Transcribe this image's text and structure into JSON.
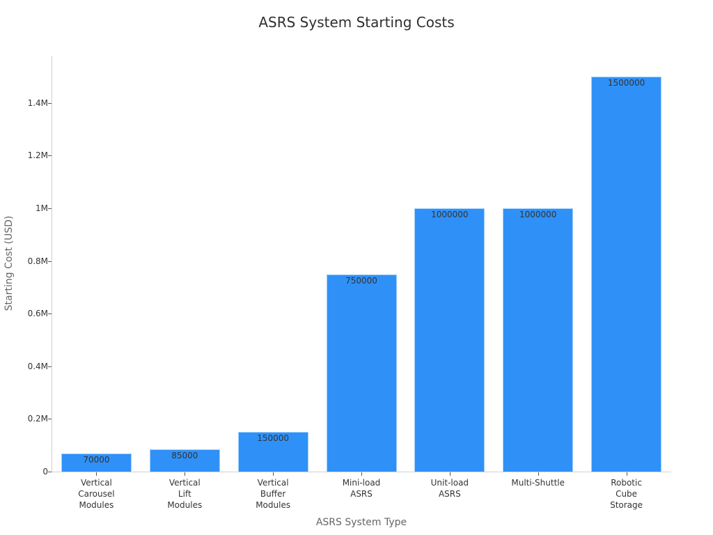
{
  "chart_data": {
    "type": "bar",
    "title": "ASRS System Starting Costs",
    "xlabel": "ASRS System Type",
    "ylabel": "Starting Cost (USD)",
    "categories": [
      "Vertical\nCarousel\nModules",
      "Vertical\nLift\nModules",
      "Vertical\nBuffer\nModules",
      "Mini-load\nASRS",
      "Unit-load\nASRS",
      "Multi-Shuttle",
      "Robotic\nCube\nStorage"
    ],
    "values": [
      70000,
      85000,
      150000,
      750000,
      1000000,
      1000000,
      1500000
    ],
    "data_labels": [
      "70000",
      "85000",
      "150000",
      "750000",
      "1000000",
      "1000000",
      "1500000"
    ],
    "yticks": [
      {
        "value": 0,
        "label": "0"
      },
      {
        "value": 200000,
        "label": "0.2M"
      },
      {
        "value": 400000,
        "label": "0.4M"
      },
      {
        "value": 600000,
        "label": "0.6M"
      },
      {
        "value": 800000,
        "label": "0.8M"
      },
      {
        "value": 1000000,
        "label": "1M"
      },
      {
        "value": 1200000,
        "label": "1.2M"
      },
      {
        "value": 1400000,
        "label": "1.4M"
      }
    ],
    "ylim": [
      0,
      1580000
    ],
    "grid": false,
    "legend": null,
    "bar_color": "#2f91f7"
  }
}
